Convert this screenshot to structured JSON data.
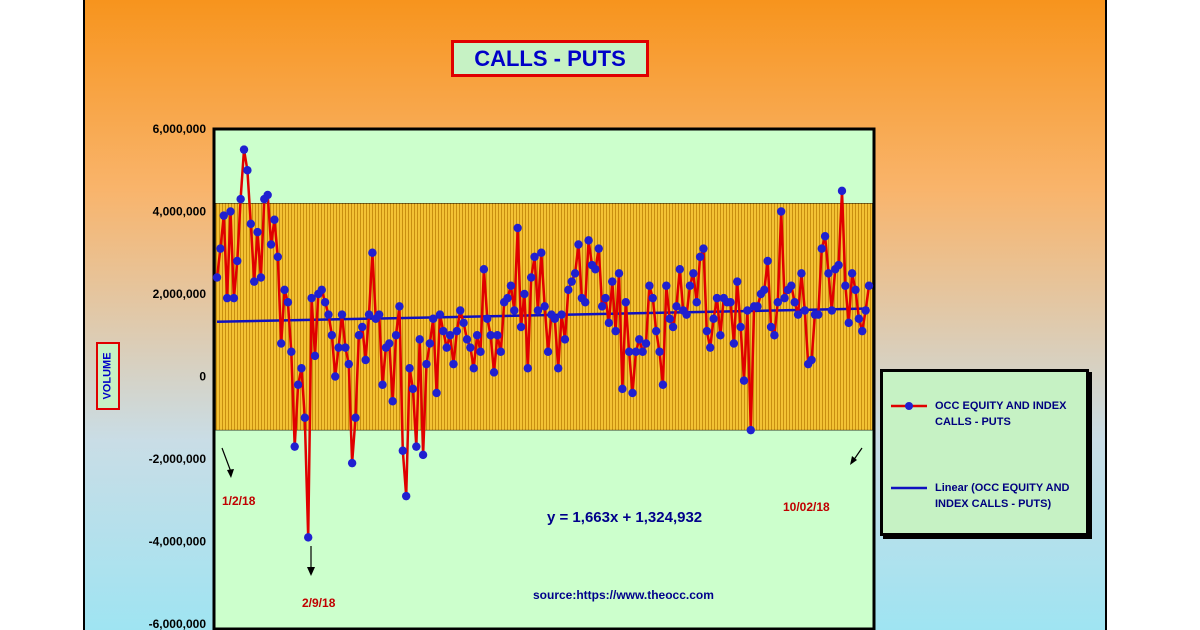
{
  "chart_data": {
    "type": "line",
    "title": "CALLS - PUTS",
    "ylabel": "VOLUME",
    "ylim": [
      -6000000,
      6000000
    ],
    "yticks": [
      6000000,
      4000000,
      2000000,
      0,
      -2000000,
      -4000000,
      -6000000
    ],
    "ytick_labels": [
      "6,000,000",
      "4,000,000",
      "2,000,000",
      "0",
      "-2,000,000",
      "-4,000,000",
      "-6,000,000"
    ],
    "band": [
      -1300000,
      4200000
    ],
    "series": [
      {
        "name": "OCC EQUITY AND INDEX CALLS - PUTS",
        "color": "#e00000",
        "marker_color": "#2020d0",
        "values": [
          2400000,
          3100000,
          3900000,
          1900000,
          4000000,
          1900000,
          2800000,
          4300000,
          5500000,
          5000000,
          3700000,
          2300000,
          3500000,
          2400000,
          4300000,
          4400000,
          3200000,
          3800000,
          2900000,
          800000,
          2100000,
          1800000,
          600000,
          -1700000,
          -200000,
          200000,
          -1000000,
          -3900000,
          1900000,
          500000,
          2000000,
          2100000,
          1800000,
          1500000,
          1000000,
          0,
          700000,
          1500000,
          700000,
          300000,
          -2100000,
          -1000000,
          1000000,
          1200000,
          400000,
          1500000,
          3000000,
          1400000,
          1500000,
          -200000,
          700000,
          800000,
          -600000,
          1000000,
          1700000,
          -1800000,
          -2900000,
          200000,
          -300000,
          -1700000,
          900000,
          -1900000,
          300000,
          800000,
          1400000,
          -400000,
          1500000,
          1100000,
          700000,
          1000000,
          300000,
          1100000,
          1600000,
          1300000,
          900000,
          700000,
          200000,
          1000000,
          600000,
          2600000,
          1400000,
          1000000,
          100000,
          1000000,
          600000,
          1800000,
          1900000,
          2200000,
          1600000,
          3600000,
          1200000,
          2000000,
          200000,
          2400000,
          2900000,
          1600000,
          3000000,
          1700000,
          600000,
          1500000,
          1400000,
          200000,
          1500000,
          900000,
          2100000,
          2300000,
          2500000,
          3200000,
          1900000,
          1800000,
          3300000,
          2700000,
          2600000,
          3100000,
          1700000,
          1900000,
          1300000,
          2300000,
          1100000,
          2500000,
          -300000,
          1800000,
          600000,
          -400000,
          600000,
          900000,
          600000,
          800000,
          2200000,
          1900000,
          1100000,
          600000,
          -200000,
          2200000,
          1400000,
          1200000,
          1700000,
          2600000,
          1600000,
          1500000,
          2200000,
          2500000,
          1800000,
          2900000,
          3100000,
          1100000,
          700000,
          1400000,
          1900000,
          1000000,
          1900000,
          1800000,
          1800000,
          800000,
          2300000,
          1200000,
          -100000,
          1600000,
          -1300000,
          1700000,
          1700000,
          2000000,
          2100000,
          2800000,
          1200000,
          1000000,
          1800000,
          4000000,
          1900000,
          2100000,
          2200000,
          1800000,
          1500000,
          2500000,
          1600000,
          300000,
          400000,
          1500000,
          1500000,
          3100000,
          3400000,
          2500000,
          1600000,
          2600000,
          2700000,
          4500000,
          2200000,
          1300000,
          2500000,
          2100000,
          1400000,
          1100000,
          1600000,
          2200000
        ]
      },
      {
        "name": "Linear (OCC EQUITY AND INDEX CALLS - PUTS)",
        "color": "#1010c0",
        "slope": 1663,
        "intercept": 1324932
      }
    ],
    "annotations": [
      {
        "text": "1/2/18",
        "color": "#c00000"
      },
      {
        "text": "2/9/18",
        "color": "#c00000"
      },
      {
        "text": "10/02/18",
        "color": "#c00000"
      },
      {
        "text": "y = 1,663x + 1,324,932",
        "color": "#00008b"
      },
      {
        "text": "source:https://www.theocc.com",
        "color": "#00008b"
      }
    ],
    "legend_position": "right"
  }
}
